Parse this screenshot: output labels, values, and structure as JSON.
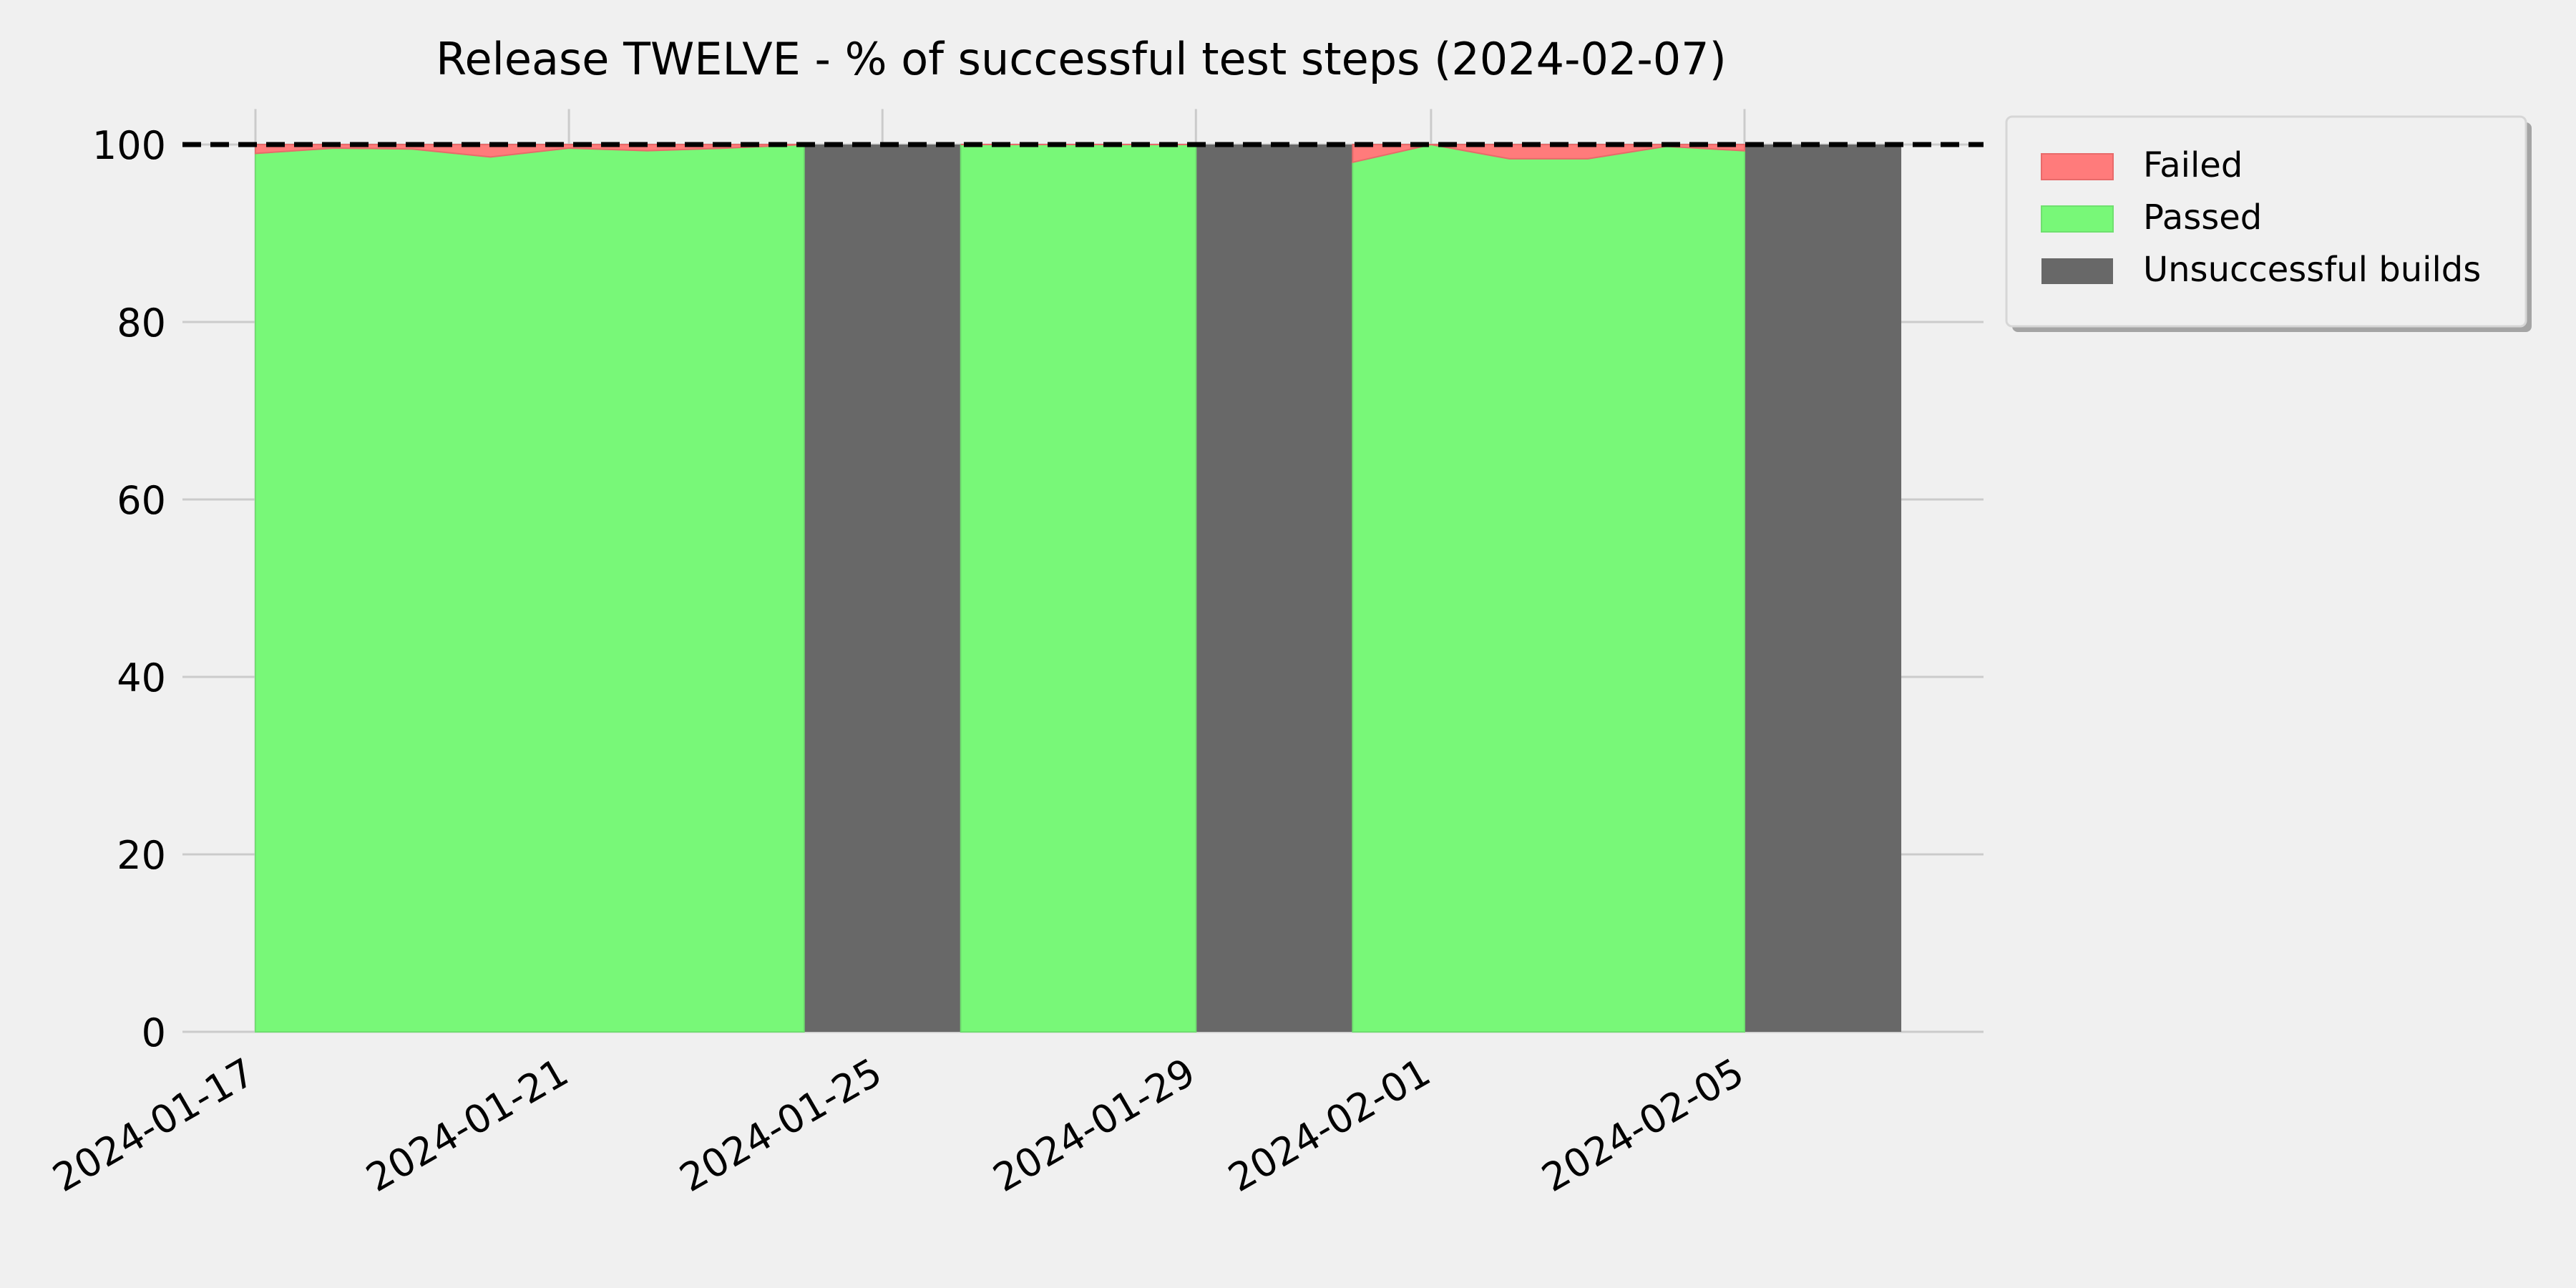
{
  "chart_data": {
    "type": "area",
    "title": "Release TWELVE - % of successful test steps (2024-02-07)",
    "xlabel": "",
    "ylabel": "",
    "ylim": [
      0,
      104
    ],
    "xlim": [
      "2024-01-16",
      "2024-02-07"
    ],
    "grid": true,
    "legend_position": "outside right, top",
    "reference_line": {
      "y": 100,
      "style": "dashed",
      "color": "#000000"
    },
    "x_ticks": [
      "2024-01-17",
      "2024-01-21",
      "2024-01-25",
      "2024-01-29",
      "2024-02-01",
      "2024-02-05"
    ],
    "y_ticks": [
      0,
      20,
      40,
      60,
      80,
      100
    ],
    "colors": {
      "failed": "#ff7b7b",
      "passed": "#78f878",
      "unsuccessful": "#686868",
      "grid": "#cbcbcb",
      "background": "#f0f0f0"
    },
    "series": [
      {
        "name": "Passed",
        "dates": [
          "2024-01-17",
          "2024-01-18",
          "2024-01-19",
          "2024-01-20",
          "2024-01-21",
          "2024-01-22",
          "2024-01-23",
          "2024-01-24",
          "2024-01-26",
          "2024-01-27",
          "2024-01-28",
          "2024-01-29",
          "2024-01-31",
          "2024-02-01",
          "2024-02-02",
          "2024-02-03",
          "2024-02-04",
          "2024-02-05"
        ],
        "values": [
          99.0,
          99.6,
          99.5,
          98.6,
          99.6,
          99.3,
          99.6,
          100.0,
          100.0,
          100.0,
          100.0,
          100.0,
          98.0,
          100.0,
          98.4,
          98.4,
          99.8,
          99.3
        ]
      },
      {
        "name": "Failed",
        "dates": [
          "2024-01-17",
          "2024-01-18",
          "2024-01-19",
          "2024-01-20",
          "2024-01-21",
          "2024-01-22",
          "2024-01-23",
          "2024-01-24",
          "2024-01-26",
          "2024-01-27",
          "2024-01-28",
          "2024-01-29",
          "2024-01-31",
          "2024-02-01",
          "2024-02-02",
          "2024-02-03",
          "2024-02-04",
          "2024-02-05"
        ],
        "values": [
          1.0,
          0.4,
          0.5,
          1.4,
          0.4,
          0.7,
          0.4,
          0.0,
          0.0,
          0.0,
          0.0,
          0.0,
          2.0,
          0.0,
          1.6,
          1.6,
          0.2,
          0.7
        ]
      },
      {
        "name": "Unsuccessful builds",
        "ranges": [
          [
            "2024-01-24",
            "2024-01-26"
          ],
          [
            "2024-01-29",
            "2024-01-31"
          ],
          [
            "2024-02-05",
            "2024-02-07"
          ]
        ],
        "value": 100
      }
    ],
    "legend": [
      "Failed",
      "Passed",
      "Unsuccessful builds"
    ]
  }
}
